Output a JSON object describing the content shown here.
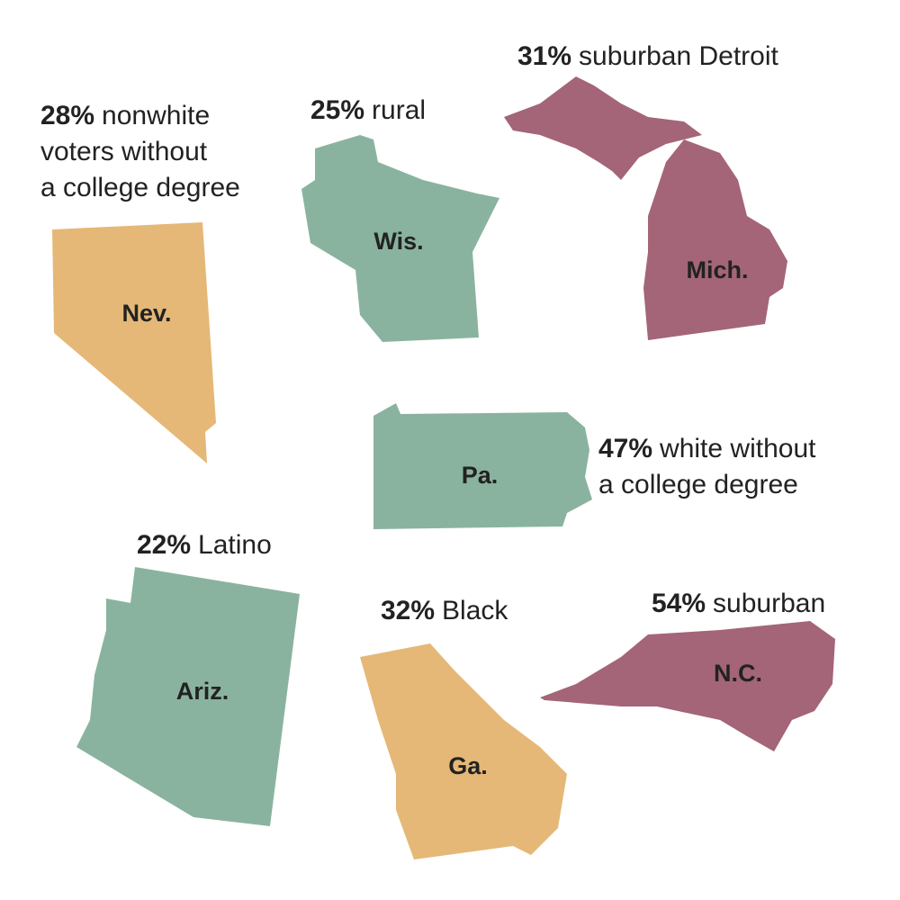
{
  "states": [
    {
      "abbr": "Nev.",
      "color": "#e5b877",
      "pct": "28%",
      "lines": [
        "nonwhite",
        "voters without",
        "a college degree"
      ]
    },
    {
      "abbr": "Wis.",
      "color": "#8ab39f",
      "pct": "25%",
      "lines": [
        "rural"
      ]
    },
    {
      "abbr": "Mich.",
      "color": "#a36577",
      "pct": "31%",
      "lines": [
        "suburban Detroit"
      ]
    },
    {
      "abbr": "Pa.",
      "color": "#8ab39f",
      "pct": "47%",
      "lines": [
        "white without",
        "a college degree"
      ]
    },
    {
      "abbr": "Ariz.",
      "color": "#8ab39f",
      "pct": "22%",
      "lines": [
        "Latino"
      ]
    },
    {
      "abbr": "Ga.",
      "color": "#e5b877",
      "pct": "32%",
      "lines": [
        "Black"
      ]
    },
    {
      "abbr": "N.C.",
      "color": "#a36577",
      "pct": "54%",
      "lines": [
        "suburban"
      ]
    }
  ]
}
